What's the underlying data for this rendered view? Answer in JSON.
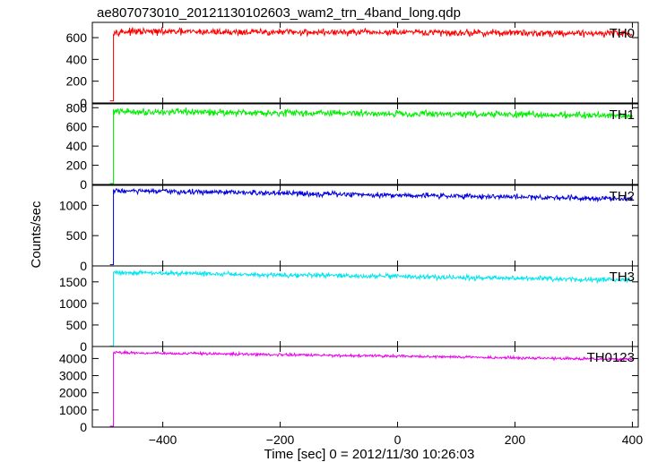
{
  "chart_data": {
    "type": "line",
    "title": "ae807073010_20121130102603_wam2_trn_4band_long.qdp",
    "xlabel": "Time [sec] 0 = 2012/11/30 10:26:03",
    "ylabel": "Counts/sec",
    "xlim": [
      -520,
      410
    ],
    "xticks": [
      -400,
      -200,
      0,
      200,
      400
    ],
    "xtick_labels": [
      "−400",
      "−200",
      "0",
      "200",
      "400"
    ],
    "panels": [
      {
        "name": "TH0",
        "color": "#ff0000",
        "ylim": [
          0,
          740
        ],
        "yticks": [
          0,
          200,
          400,
          600
        ],
        "ytick_labels": [
          "0",
          "200",
          "400",
          "600"
        ],
        "pre_level": 20,
        "step_start": -490,
        "step_time": -484,
        "level_start": 655,
        "level_end": 640,
        "noise": 28
      },
      {
        "name": "TH1",
        "color": "#00ee00",
        "ylim": [
          0,
          840
        ],
        "yticks": [
          0,
          200,
          400,
          600,
          800
        ],
        "ytick_labels": [
          "0",
          "200",
          "400",
          "600",
          "800"
        ],
        "pre_level": 10,
        "step_start": -490,
        "step_time": -484,
        "level_start": 760,
        "level_end": 720,
        "noise": 32
      },
      {
        "name": "TH2",
        "color": "#0000dd",
        "ylim": [
          0,
          1330
        ],
        "yticks": [
          0,
          500,
          1000
        ],
        "ytick_labels": [
          "0",
          "500",
          "1000"
        ],
        "pre_level": 20,
        "step_start": -490,
        "step_time": -484,
        "level_start": 1240,
        "level_end": 1110,
        "noise": 40
      },
      {
        "name": "TH3",
        "color": "#00e5ee",
        "ylim": [
          0,
          1870
        ],
        "yticks": [
          0,
          500,
          1000,
          1500
        ],
        "ytick_labels": [
          "0",
          "500",
          "1000",
          "1500"
        ],
        "pre_level": 10,
        "step_start": -490,
        "step_time": -484,
        "level_start": 1720,
        "level_end": 1540,
        "noise": 50
      },
      {
        "name": "TH0123",
        "color": "#ee00ee",
        "ylim": [
          0,
          4700
        ],
        "yticks": [
          0,
          1000,
          2000,
          3000,
          4000
        ],
        "ytick_labels": [
          "0",
          "1000",
          "2000",
          "3000",
          "4000"
        ],
        "pre_level": 50,
        "step_start": -490,
        "step_time": -484,
        "level_start": 4350,
        "level_end": 3950,
        "noise": 70
      }
    ]
  }
}
